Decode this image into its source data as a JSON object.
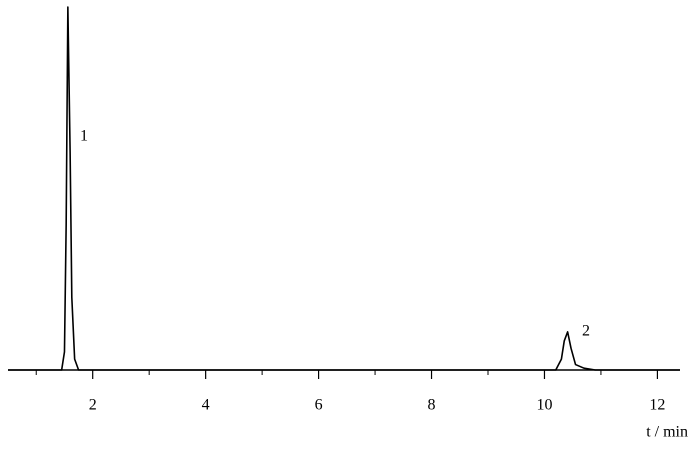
{
  "chart_data": {
    "type": "line",
    "x": [
      0.5,
      1.45,
      1.5,
      1.53,
      1.56,
      1.6,
      1.63,
      1.68,
      1.75,
      10.2,
      10.3,
      10.35,
      10.41,
      10.47,
      10.55,
      10.7,
      10.9,
      12.4
    ],
    "values": [
      0,
      0,
      5,
      40,
      100,
      60,
      20,
      3,
      0,
      0,
      3,
      8,
      10.5,
      6,
      1.5,
      0.5,
      0,
      0
    ],
    "color": "#000000",
    "xlim": [
      0.5,
      12.4
    ],
    "ylim": [
      0,
      100
    ],
    "xticks": [
      2,
      4,
      6,
      8,
      10,
      12
    ],
    "xminorticks": [
      1,
      3,
      5,
      7,
      9,
      11
    ],
    "xlabel": "t / min",
    "annotations": [
      "1",
      "2"
    ],
    "grid": false
  }
}
